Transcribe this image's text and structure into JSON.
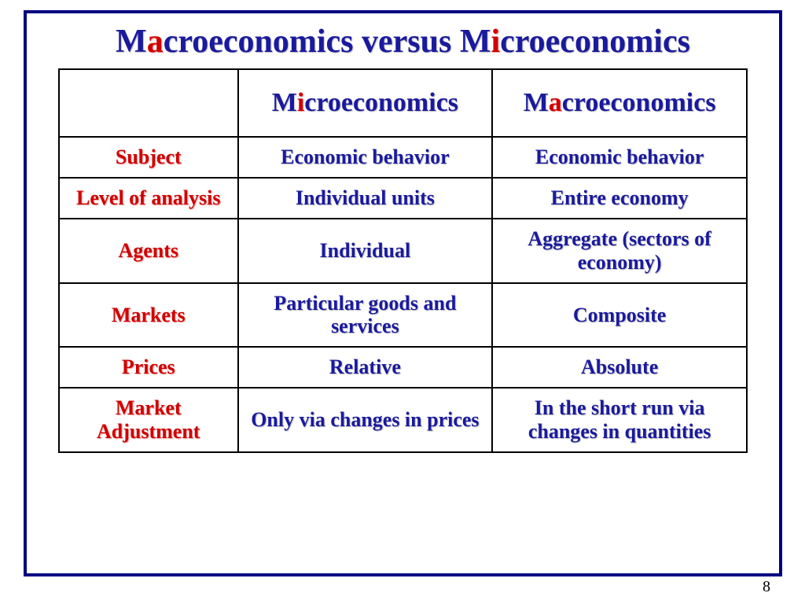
{
  "colors": {
    "frame_border": "#000080",
    "text_blue": "#1a1a9e",
    "text_red": "#d10000",
    "table_border": "#000000",
    "background": "#ffffff"
  },
  "typography": {
    "family": "Times New Roman",
    "title_fontsize": 42,
    "header_fontsize": 34,
    "cell_fontsize": 26,
    "page_num_fontsize": 20,
    "bold": true
  },
  "title": {
    "parts": [
      {
        "text": "M",
        "style": "blue"
      },
      {
        "text": "a",
        "style": "red"
      },
      {
        "text": "croeconomics versus M",
        "style": "blue"
      },
      {
        "text": "i",
        "style": "red"
      },
      {
        "text": "croeconomics",
        "style": "blue"
      }
    ]
  },
  "table": {
    "type": "table",
    "column_widths_pct": [
      26,
      37,
      37
    ],
    "headers": {
      "col1": {
        "parts": [
          {
            "text": "M",
            "style": "blue"
          },
          {
            "text": "i",
            "style": "red"
          },
          {
            "text": "croeconomics",
            "style": "blue"
          }
        ]
      },
      "col2": {
        "parts": [
          {
            "text": "M",
            "style": "blue"
          },
          {
            "text": "a",
            "style": "red"
          },
          {
            "text": "croeconomics",
            "style": "blue"
          }
        ]
      }
    },
    "rows": [
      {
        "label": "Subject",
        "micro": "Economic behavior",
        "macro": "Economic behavior"
      },
      {
        "label": "Level of analysis",
        "micro": "Individual units",
        "macro": "Entire economy"
      },
      {
        "label": "Agents",
        "micro": "Individual",
        "macro": "Aggregate (sectors of economy)"
      },
      {
        "label": "Markets",
        "micro": "Particular goods and services",
        "macro": "Composite"
      },
      {
        "label": "Prices",
        "micro": "Relative",
        "macro": "Absolute"
      },
      {
        "label": "Market Adjustment",
        "micro": "Only via changes in prices",
        "macro": "In the short run via changes in quantities"
      }
    ]
  },
  "page_number": "8"
}
